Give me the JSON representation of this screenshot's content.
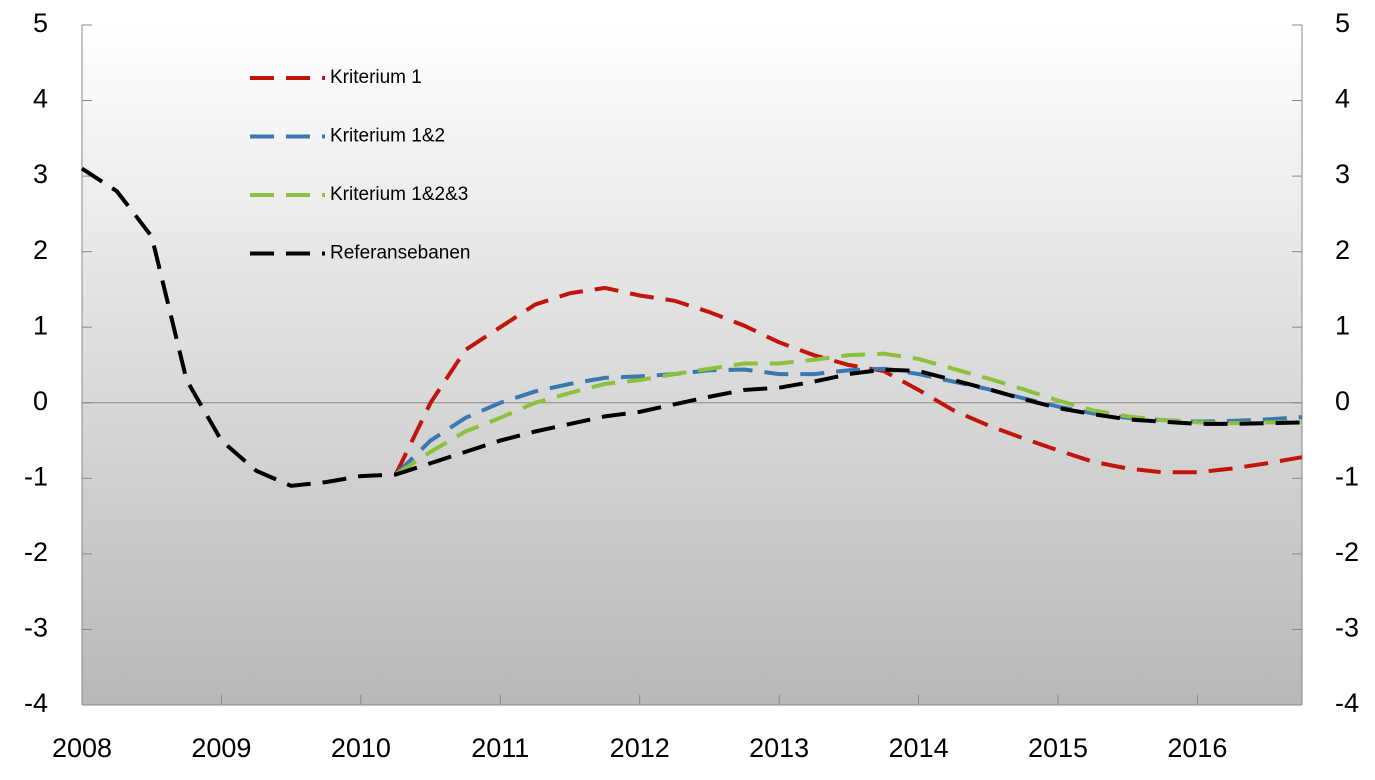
{
  "chart_data": {
    "type": "line",
    "x": [
      2008,
      2008.25,
      2008.5,
      2008.75,
      2009,
      2009.25,
      2009.5,
      2009.75,
      2010,
      2010.25,
      2010.5,
      2010.75,
      2011,
      2011.25,
      2011.5,
      2011.75,
      2012,
      2012.25,
      2012.5,
      2012.75,
      2013,
      2013.25,
      2013.5,
      2013.75,
      2014,
      2014.25,
      2014.5,
      2014.75,
      2015,
      2015.25,
      2015.5,
      2015.75,
      2016,
      2016.25,
      2016.5,
      2016.75
    ],
    "series": [
      {
        "name": "Kriterium 1",
        "color": "#c0140c",
        "values": [
          null,
          null,
          null,
          null,
          null,
          null,
          null,
          null,
          null,
          -0.95,
          0.0,
          0.7,
          1.0,
          1.3,
          1.45,
          1.52,
          1.42,
          1.35,
          1.2,
          1.02,
          0.8,
          0.63,
          0.5,
          0.42,
          0.17,
          -0.1,
          -0.3,
          -0.47,
          -0.63,
          -0.78,
          -0.87,
          -0.92,
          -0.92,
          -0.87,
          -0.8,
          -0.72
        ]
      },
      {
        "name": "Kriterium 1&2",
        "color": "#3a78b0",
        "values": [
          null,
          null,
          null,
          null,
          null,
          null,
          null,
          null,
          null,
          -0.95,
          -0.5,
          -0.2,
          0.0,
          0.15,
          0.25,
          0.33,
          0.35,
          0.38,
          0.43,
          0.44,
          0.38,
          0.38,
          0.43,
          0.45,
          0.38,
          0.28,
          0.18,
          0.06,
          -0.05,
          -0.14,
          -0.2,
          -0.23,
          -0.25,
          -0.24,
          -0.22,
          -0.19
        ]
      },
      {
        "name": "Kriterium 1&2&3",
        "color": "#8dc03c",
        "values": [
          null,
          null,
          null,
          null,
          null,
          null,
          null,
          null,
          null,
          -0.95,
          -0.65,
          -0.38,
          -0.2,
          0.0,
          0.13,
          0.25,
          0.3,
          0.38,
          0.45,
          0.52,
          0.52,
          0.57,
          0.63,
          0.65,
          0.58,
          0.45,
          0.32,
          0.18,
          0.03,
          -0.1,
          -0.18,
          -0.23,
          -0.26,
          -0.27,
          -0.26,
          -0.25
        ]
      },
      {
        "name": "Referansebanen",
        "color": "#000000",
        "values": [
          3.1,
          2.8,
          2.2,
          0.3,
          -0.5,
          -0.9,
          -1.1,
          -1.05,
          -0.97,
          -0.95,
          -0.8,
          -0.65,
          -0.5,
          -0.38,
          -0.28,
          -0.18,
          -0.12,
          -0.02,
          0.08,
          0.17,
          0.2,
          0.28,
          0.38,
          0.44,
          0.42,
          0.3,
          0.18,
          0.05,
          -0.07,
          -0.15,
          -0.22,
          -0.25,
          -0.28,
          -0.28,
          -0.27,
          -0.26
        ]
      }
    ],
    "xlim": [
      2008,
      2016.75
    ],
    "xticks": [
      2008,
      2009,
      2010,
      2011,
      2012,
      2013,
      2014,
      2015,
      2016
    ],
    "ylim": [
      -4,
      5
    ],
    "yticks": [
      -4,
      -3,
      -2,
      -1,
      0,
      1,
      2,
      3,
      4,
      5
    ],
    "y2lim": [
      -4,
      5
    ],
    "y2ticks": [
      -4,
      -3,
      -2,
      -1,
      0,
      1,
      2,
      3,
      4,
      5
    ],
    "legend": "upper left",
    "dashed": true
  }
}
